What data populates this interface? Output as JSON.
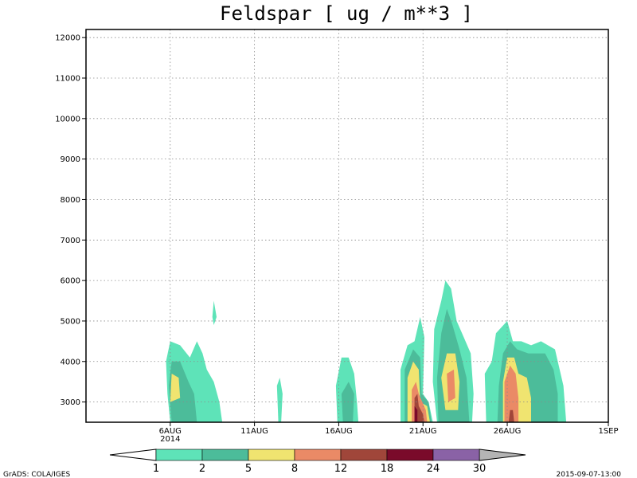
{
  "chart_data": {
    "type": "heatmap",
    "title": "Feldspar [ ug / m**3 ]",
    "ylim": [
      2500,
      12200
    ],
    "y_ticks": [
      3000,
      4000,
      5000,
      6000,
      7000,
      8000,
      9000,
      10000,
      11000,
      12000
    ],
    "x_range": [
      "2014-08-01",
      "2014-09-01"
    ],
    "x_ticks": [
      {
        "date": "2014-08-06",
        "label": "6AUG",
        "sublabel": "2014"
      },
      {
        "date": "2014-08-11",
        "label": "11AUG",
        "sublabel": ""
      },
      {
        "date": "2014-08-16",
        "label": "16AUG",
        "sublabel": ""
      },
      {
        "date": "2014-08-21",
        "label": "21AUG",
        "sublabel": ""
      },
      {
        "date": "2014-08-26",
        "label": "26AUG",
        "sublabel": ""
      },
      {
        "date": "2014-09-01",
        "label": "1SEP",
        "sublabel": ""
      }
    ],
    "grid": true,
    "levels": [
      1,
      2,
      5,
      8,
      12,
      18,
      24,
      30
    ],
    "level_colors": [
      "#ffffff",
      "#5ee3b8",
      "#4cbc9a",
      "#f0e470",
      "#ea8a66",
      "#a0463a",
      "#7a0a2a",
      "#8a62a6",
      "#b4b4b4"
    ],
    "level_labels": [
      "1",
      "2",
      "5",
      "8",
      "12",
      "18",
      "24",
      "30"
    ],
    "contour_regions": [
      {
        "level_index": 1,
        "polygon": [
          [
            "2014-08-06T00",
            2500
          ],
          [
            "2014-08-05T20",
            3200
          ],
          [
            "2014-08-05T18",
            4000
          ],
          [
            "2014-08-06T00",
            4500
          ],
          [
            "2014-08-06T14",
            4400
          ],
          [
            "2014-08-07T04",
            4100
          ],
          [
            "2014-08-07T14",
            4500
          ],
          [
            "2014-08-07T22",
            4200
          ],
          [
            "2014-08-08T04",
            3800
          ],
          [
            "2014-08-08T14",
            3500
          ],
          [
            "2014-08-08T22",
            3000
          ],
          [
            "2014-08-09T02",
            2500
          ]
        ]
      },
      {
        "level_index": 2,
        "polygon": [
          [
            "2014-08-06T02",
            2500
          ],
          [
            "2014-08-05T22",
            3400
          ],
          [
            "2014-08-06T02",
            4000
          ],
          [
            "2014-08-06T14",
            4000
          ],
          [
            "2014-08-07T02",
            3500
          ],
          [
            "2014-08-07T10",
            3200
          ],
          [
            "2014-08-07T14",
            2500
          ]
        ]
      },
      {
        "level_index": 3,
        "polygon": [
          [
            "2014-08-06T00",
            3000
          ],
          [
            "2014-08-06T02",
            3700
          ],
          [
            "2014-08-06T12",
            3600
          ],
          [
            "2014-08-06T14",
            3100
          ]
        ]
      },
      {
        "level_index": 1,
        "polygon": [
          [
            "2014-08-08T12",
            5100
          ],
          [
            "2014-08-08T14",
            5500
          ],
          [
            "2014-08-08T18",
            5100
          ],
          [
            "2014-08-08T14",
            4900
          ]
        ]
      },
      {
        "level_index": 1,
        "polygon": [
          [
            "2014-08-12T10",
            2500
          ],
          [
            "2014-08-12T08",
            3400
          ],
          [
            "2014-08-12T12",
            3600
          ],
          [
            "2014-08-12T16",
            3200
          ],
          [
            "2014-08-12T14",
            2500
          ]
        ]
      },
      {
        "level_index": 1,
        "polygon": [
          [
            "2014-08-15T22",
            2500
          ],
          [
            "2014-08-15T20",
            3400
          ],
          [
            "2014-08-16T04",
            4100
          ],
          [
            "2014-08-16T14",
            4100
          ],
          [
            "2014-08-16T22",
            3700
          ],
          [
            "2014-08-17T02",
            3000
          ],
          [
            "2014-08-17T04",
            2500
          ]
        ]
      },
      {
        "level_index": 2,
        "polygon": [
          [
            "2014-08-16T06",
            2500
          ],
          [
            "2014-08-16T04",
            3200
          ],
          [
            "2014-08-16T14",
            3500
          ],
          [
            "2014-08-16T22",
            3200
          ],
          [
            "2014-08-16T20",
            2500
          ]
        ]
      },
      {
        "level_index": 1,
        "polygon": [
          [
            "2014-08-19T16",
            2500
          ],
          [
            "2014-08-19T16",
            3800
          ],
          [
            "2014-08-20T02",
            4400
          ],
          [
            "2014-08-20T12",
            4500
          ],
          [
            "2014-08-20T20",
            5100
          ],
          [
            "2014-08-21T02",
            4600
          ],
          [
            "2014-08-21T00",
            3200
          ],
          [
            "2014-08-21T08",
            3000
          ],
          [
            "2014-08-21T14",
            2500
          ]
        ]
      },
      {
        "level_index": 2,
        "polygon": [
          [
            "2014-08-19T22",
            2500
          ],
          [
            "2014-08-19T22",
            3800
          ],
          [
            "2014-08-20T10",
            4300
          ],
          [
            "2014-08-20T20",
            4100
          ],
          [
            "2014-08-20T22",
            3200
          ],
          [
            "2014-08-21T08",
            3000
          ],
          [
            "2014-08-21T12",
            2500
          ]
        ]
      },
      {
        "level_index": 3,
        "polygon": [
          [
            "2014-08-20T02",
            2500
          ],
          [
            "2014-08-20T02",
            3600
          ],
          [
            "2014-08-20T10",
            4000
          ],
          [
            "2014-08-20T18",
            3800
          ],
          [
            "2014-08-20T20",
            3000
          ],
          [
            "2014-08-21T06",
            2900
          ],
          [
            "2014-08-21T10",
            2500
          ]
        ]
      },
      {
        "level_index": 4,
        "polygon": [
          [
            "2014-08-20T08",
            2500
          ],
          [
            "2014-08-20T08",
            3300
          ],
          [
            "2014-08-20T14",
            3500
          ],
          [
            "2014-08-20T18",
            3200
          ],
          [
            "2014-08-21T04",
            2800
          ],
          [
            "2014-08-21T06",
            2500
          ]
        ]
      },
      {
        "level_index": 5,
        "polygon": [
          [
            "2014-08-20T12",
            2500
          ],
          [
            "2014-08-20T12",
            3100
          ],
          [
            "2014-08-20T16",
            3200
          ],
          [
            "2014-08-20T18",
            2900
          ],
          [
            "2014-08-21T00",
            2700
          ],
          [
            "2014-08-21T02",
            2500
          ]
        ]
      },
      {
        "level_index": 6,
        "polygon": [
          [
            "2014-08-20T12",
            2500
          ],
          [
            "2014-08-20T12",
            2900
          ],
          [
            "2014-08-20T16",
            2800
          ],
          [
            "2014-08-20T16",
            2500
          ]
        ]
      },
      {
        "level_index": 1,
        "polygon": [
          [
            "2014-08-21T20",
            2500
          ],
          [
            "2014-08-21T14",
            3500
          ],
          [
            "2014-08-21T16",
            4800
          ],
          [
            "2014-08-22T02",
            5500
          ],
          [
            "2014-08-22T08",
            6000
          ],
          [
            "2014-08-22T16",
            5800
          ],
          [
            "2014-08-23T00",
            5000
          ],
          [
            "2014-08-23T10",
            4600
          ],
          [
            "2014-08-23T20",
            4200
          ],
          [
            "2014-08-24T00",
            3200
          ],
          [
            "2014-08-23T22",
            2500
          ]
        ]
      },
      {
        "level_index": 2,
        "polygon": [
          [
            "2014-08-21T22",
            2500
          ],
          [
            "2014-08-21T20",
            3600
          ],
          [
            "2014-08-22T02",
            4700
          ],
          [
            "2014-08-22T10",
            5300
          ],
          [
            "2014-08-22T18",
            4900
          ],
          [
            "2014-08-23T04",
            4300
          ],
          [
            "2014-08-23T14",
            3600
          ],
          [
            "2014-08-23T18",
            2500
          ]
        ]
      },
      {
        "level_index": 3,
        "polygon": [
          [
            "2014-08-22T08",
            2800
          ],
          [
            "2014-08-22T02",
            3600
          ],
          [
            "2014-08-22T10",
            4200
          ],
          [
            "2014-08-22T22",
            4200
          ],
          [
            "2014-08-23T04",
            3500
          ],
          [
            "2014-08-23T02",
            2800
          ]
        ]
      },
      {
        "level_index": 4,
        "polygon": [
          [
            "2014-08-22T12",
            3000
          ],
          [
            "2014-08-22T10",
            3700
          ],
          [
            "2014-08-22T20",
            3800
          ],
          [
            "2014-08-22T22",
            3100
          ]
        ]
      },
      {
        "level_index": 1,
        "polygon": [
          [
            "2014-08-24T18",
            2500
          ],
          [
            "2014-08-24T16",
            3700
          ],
          [
            "2014-08-25T02",
            4000
          ],
          [
            "2014-08-25T08",
            4700
          ],
          [
            "2014-08-26T00",
            5000
          ],
          [
            "2014-08-26T08",
            4500
          ],
          [
            "2014-08-26T20",
            4500
          ],
          [
            "2014-08-27T10",
            4400
          ],
          [
            "2014-08-28T00",
            4500
          ],
          [
            "2014-08-28T20",
            4300
          ],
          [
            "2014-08-29T08",
            3400
          ],
          [
            "2014-08-29T12",
            2500
          ]
        ]
      },
      {
        "level_index": 2,
        "polygon": [
          [
            "2014-08-25T10",
            2500
          ],
          [
            "2014-08-25T12",
            3400
          ],
          [
            "2014-08-25T18",
            4200
          ],
          [
            "2014-08-26T04",
            4500
          ],
          [
            "2014-08-26T14",
            4300
          ],
          [
            "2014-08-27T06",
            4200
          ],
          [
            "2014-08-28T06",
            4200
          ],
          [
            "2014-08-28T18",
            3800
          ],
          [
            "2014-08-29T00",
            3200
          ],
          [
            "2014-08-29T00",
            2500
          ]
        ]
      },
      {
        "level_index": 3,
        "polygon": [
          [
            "2014-08-25T18",
            2500
          ],
          [
            "2014-08-25T18",
            3500
          ],
          [
            "2014-08-26T00",
            4100
          ],
          [
            "2014-08-26T10",
            4100
          ],
          [
            "2014-08-26T16",
            3700
          ],
          [
            "2014-08-27T04",
            3600
          ],
          [
            "2014-08-27T10",
            3100
          ],
          [
            "2014-08-27T10",
            2500
          ]
        ]
      },
      {
        "level_index": 4,
        "polygon": [
          [
            "2014-08-25T20",
            2500
          ],
          [
            "2014-08-25T20",
            3500
          ],
          [
            "2014-08-26T04",
            3900
          ],
          [
            "2014-08-26T12",
            3700
          ],
          [
            "2014-08-26T16",
            3100
          ],
          [
            "2014-08-26T16",
            2500
          ]
        ]
      },
      {
        "level_index": 5,
        "polygon": [
          [
            "2014-08-26T02",
            2500
          ],
          [
            "2014-08-26T04",
            2800
          ],
          [
            "2014-08-26T08",
            2800
          ],
          [
            "2014-08-26T10",
            2500
          ]
        ]
      }
    ]
  },
  "footer": {
    "left": "GrADS: COLA/IGES",
    "right": "2015-09-07-13:00"
  }
}
